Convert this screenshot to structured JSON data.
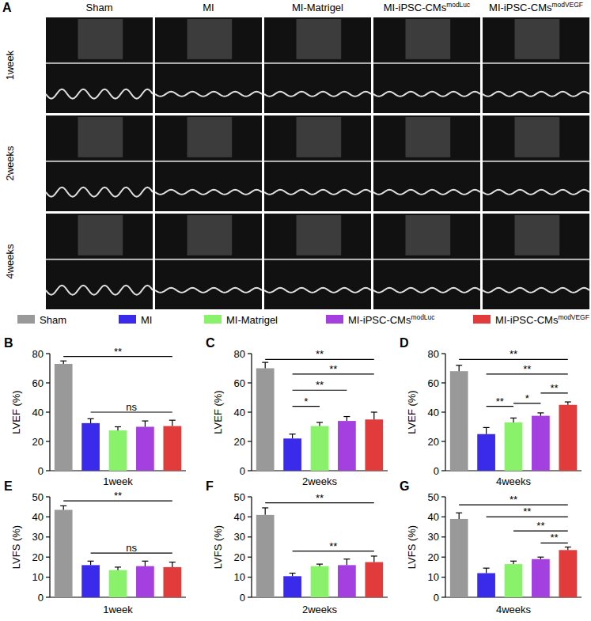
{
  "panel_a": {
    "label": "A",
    "columns": [
      {
        "text": "Sham"
      },
      {
        "text": "MI"
      },
      {
        "text": "MI-Matrigel"
      },
      {
        "text": "MI-iPSC-CMsmodLuc",
        "sup": "modLuc"
      },
      {
        "text": "MI-iPSC-CMsmodVEGF",
        "sup": "modVEGF"
      }
    ],
    "rows": [
      "1week",
      "2weeks",
      "4weeks"
    ]
  },
  "chart_data": [
    {
      "type": "bar",
      "panel": "B",
      "y_label": "LVEF (%)",
      "categories": [
        "1week"
      ],
      "ylim": [
        0,
        80
      ],
      "yticks": [
        0,
        20,
        40,
        60,
        80
      ],
      "series": [
        {
          "name": "Sham",
          "color": "#999999",
          "values": [
            73
          ],
          "errors": [
            2
          ]
        },
        {
          "name": "MI",
          "color": "#3a2bea",
          "values": [
            32.5
          ],
          "errors": [
            3
          ]
        },
        {
          "name": "MI-Matrigel",
          "color": "#8af26a",
          "values": [
            27.5
          ],
          "errors": [
            2.5
          ]
        },
        {
          "name": "MI-iPSC-CMsmodLuc",
          "name_sup": "modLuc",
          "color": "#a43fe0",
          "values": [
            30
          ],
          "errors": [
            4
          ]
        },
        {
          "name": "MI-iPSC-CMsmodVEGF",
          "name_sup": "modVEGF",
          "color": "#e23b3b",
          "values": [
            30.5
          ],
          "errors": [
            4
          ]
        }
      ],
      "annotations": [
        {
          "between": [
            "Sham",
            "MI-iPSC-CMsmodVEGF"
          ],
          "y": 78,
          "label": "**"
        },
        {
          "between": [
            "MI",
            "MI-iPSC-CMsmodVEGF"
          ],
          "y": 40,
          "label": "ns"
        }
      ]
    },
    {
      "type": "bar",
      "panel": "C",
      "y_label": "LVEF (%)",
      "categories": [
        "2weeks"
      ],
      "ylim": [
        0,
        80
      ],
      "yticks": [
        0,
        20,
        40,
        60,
        80
      ],
      "series": [
        {
          "name": "Sham",
          "color": "#999999",
          "values": [
            70
          ],
          "errors": [
            4
          ]
        },
        {
          "name": "MI",
          "color": "#3a2bea",
          "values": [
            22
          ],
          "errors": [
            3
          ]
        },
        {
          "name": "MI-Matrigel",
          "color": "#8af26a",
          "values": [
            30.5
          ],
          "errors": [
            2.5
          ]
        },
        {
          "name": "MI-iPSC-CMsmodLuc",
          "name_sup": "modLuc",
          "color": "#a43fe0",
          "values": [
            34
          ],
          "errors": [
            3
          ]
        },
        {
          "name": "MI-iPSC-CMsmodVEGF",
          "name_sup": "modVEGF",
          "color": "#e23b3b",
          "values": [
            35
          ],
          "errors": [
            5
          ]
        }
      ],
      "annotations": [
        {
          "between": [
            "Sham",
            "MI-iPSC-CMsmodVEGF"
          ],
          "y": 76,
          "label": "**"
        },
        {
          "between": [
            "MI",
            "MI-iPSC-CMsmodVEGF"
          ],
          "y": 66,
          "label": "**"
        },
        {
          "between": [
            "MI",
            "MI-iPSC-CMsmodLuc"
          ],
          "y": 55,
          "label": "**"
        },
        {
          "between": [
            "MI",
            "MI-Matrigel"
          ],
          "y": 44,
          "label": "*"
        }
      ]
    },
    {
      "type": "bar",
      "panel": "D",
      "y_label": "LVEF (%)",
      "categories": [
        "4weeks"
      ],
      "ylim": [
        0,
        80
      ],
      "yticks": [
        0,
        20,
        40,
        60,
        80
      ],
      "series": [
        {
          "name": "Sham",
          "color": "#999999",
          "values": [
            68
          ],
          "errors": [
            4
          ]
        },
        {
          "name": "MI",
          "color": "#3a2bea",
          "values": [
            25
          ],
          "errors": [
            4.5
          ]
        },
        {
          "name": "MI-Matrigel",
          "color": "#8af26a",
          "values": [
            33
          ],
          "errors": [
            3
          ]
        },
        {
          "name": "MI-iPSC-CMsmodLuc",
          "name_sup": "modLuc",
          "color": "#a43fe0",
          "values": [
            37.5
          ],
          "errors": [
            2
          ]
        },
        {
          "name": "MI-iPSC-CMsmodVEGF",
          "name_sup": "modVEGF",
          "color": "#e23b3b",
          "values": [
            45
          ],
          "errors": [
            2
          ]
        }
      ],
      "annotations": [
        {
          "between": [
            "Sham",
            "MI-iPSC-CMsmodVEGF"
          ],
          "y": 76,
          "label": "**"
        },
        {
          "between": [
            "MI",
            "MI-iPSC-CMsmodVEGF"
          ],
          "y": 66,
          "label": "**"
        },
        {
          "between": [
            "MI",
            "MI-Matrigel"
          ],
          "y": 44,
          "label": "**"
        },
        {
          "between": [
            "MI-Matrigel",
            "MI-iPSC-CMsmodLuc"
          ],
          "y": 46,
          "label": "*"
        },
        {
          "between": [
            "MI-iPSC-CMsmodLuc",
            "MI-iPSC-CMsmodVEGF"
          ],
          "y": 53,
          "label": "**"
        }
      ]
    },
    {
      "type": "bar",
      "panel": "E",
      "y_label": "LVFS (%)",
      "categories": [
        "1week"
      ],
      "ylim": [
        0,
        50
      ],
      "yticks": [
        0,
        10,
        20,
        30,
        40,
        50
      ],
      "series": [
        {
          "name": "Sham",
          "color": "#999999",
          "values": [
            43.5
          ],
          "errors": [
            2
          ]
        },
        {
          "name": "MI",
          "color": "#3a2bea",
          "values": [
            16
          ],
          "errors": [
            2
          ]
        },
        {
          "name": "MI-Matrigel",
          "color": "#8af26a",
          "values": [
            13.5
          ],
          "errors": [
            1.5
          ]
        },
        {
          "name": "MI-iPSC-CMsmodLuc",
          "name_sup": "modLuc",
          "color": "#a43fe0",
          "values": [
            15.5
          ],
          "errors": [
            2.5
          ]
        },
        {
          "name": "MI-iPSC-CMsmodVEGF",
          "name_sup": "modVEGF",
          "color": "#e23b3b",
          "values": [
            15
          ],
          "errors": [
            2.5
          ]
        }
      ],
      "annotations": [
        {
          "between": [
            "Sham",
            "MI-iPSC-CMsmodVEGF"
          ],
          "y": 48,
          "label": "**"
        },
        {
          "between": [
            "MI",
            "MI-iPSC-CMsmodVEGF"
          ],
          "y": 22,
          "label": "ns"
        }
      ]
    },
    {
      "type": "bar",
      "panel": "F",
      "y_label": "LVFS (%)",
      "categories": [
        "2weeks"
      ],
      "ylim": [
        0,
        50
      ],
      "yticks": [
        0,
        10,
        20,
        30,
        40,
        50
      ],
      "series": [
        {
          "name": "Sham",
          "color": "#999999",
          "values": [
            41
          ],
          "errors": [
            3.5
          ]
        },
        {
          "name": "MI",
          "color": "#3a2bea",
          "values": [
            10.5
          ],
          "errors": [
            1.5
          ]
        },
        {
          "name": "MI-Matrigel",
          "color": "#8af26a",
          "values": [
            15.5
          ],
          "errors": [
            1
          ]
        },
        {
          "name": "MI-iPSC-CMsmodLuc",
          "name_sup": "modLuc",
          "color": "#a43fe0",
          "values": [
            16
          ],
          "errors": [
            3
          ]
        },
        {
          "name": "MI-iPSC-CMsmodVEGF",
          "name_sup": "modVEGF",
          "color": "#e23b3b",
          "values": [
            17.5
          ],
          "errors": [
            3
          ]
        }
      ],
      "annotations": [
        {
          "between": [
            "Sham",
            "MI-iPSC-CMsmodVEGF"
          ],
          "y": 47,
          "label": "**"
        },
        {
          "between": [
            "MI",
            "MI-iPSC-CMsmodVEGF"
          ],
          "y": 23,
          "label": "**"
        }
      ]
    },
    {
      "type": "bar",
      "panel": "G",
      "y_label": "LVFS (%)",
      "categories": [
        "4weeks"
      ],
      "ylim": [
        0,
        50
      ],
      "yticks": [
        0,
        10,
        20,
        30,
        40,
        50
      ],
      "series": [
        {
          "name": "Sham",
          "color": "#999999",
          "values": [
            39
          ],
          "errors": [
            3
          ]
        },
        {
          "name": "MI",
          "color": "#3a2bea",
          "values": [
            12
          ],
          "errors": [
            2.5
          ]
        },
        {
          "name": "MI-Matrigel",
          "color": "#8af26a",
          "values": [
            16.5
          ],
          "errors": [
            1.5
          ]
        },
        {
          "name": "MI-iPSC-CMsmodLuc",
          "name_sup": "modLuc",
          "color": "#a43fe0",
          "values": [
            19
          ],
          "errors": [
            1
          ]
        },
        {
          "name": "MI-iPSC-CMsmodVEGF",
          "name_sup": "modVEGF",
          "color": "#e23b3b",
          "values": [
            23.5
          ],
          "errors": [
            1.5
          ]
        }
      ],
      "annotations": [
        {
          "between": [
            "Sham",
            "MI-iPSC-CMsmodVEGF"
          ],
          "y": 46,
          "label": "**"
        },
        {
          "between": [
            "MI",
            "MI-iPSC-CMsmodVEGF"
          ],
          "y": 40,
          "label": "**"
        },
        {
          "between": [
            "MI-Matrigel",
            "MI-iPSC-CMsmodVEGF"
          ],
          "y": 33,
          "label": "**"
        },
        {
          "between": [
            "MI-iPSC-CMsmodLuc",
            "MI-iPSC-CMsmodVEGF"
          ],
          "y": 27,
          "label": "**"
        }
      ]
    }
  ]
}
